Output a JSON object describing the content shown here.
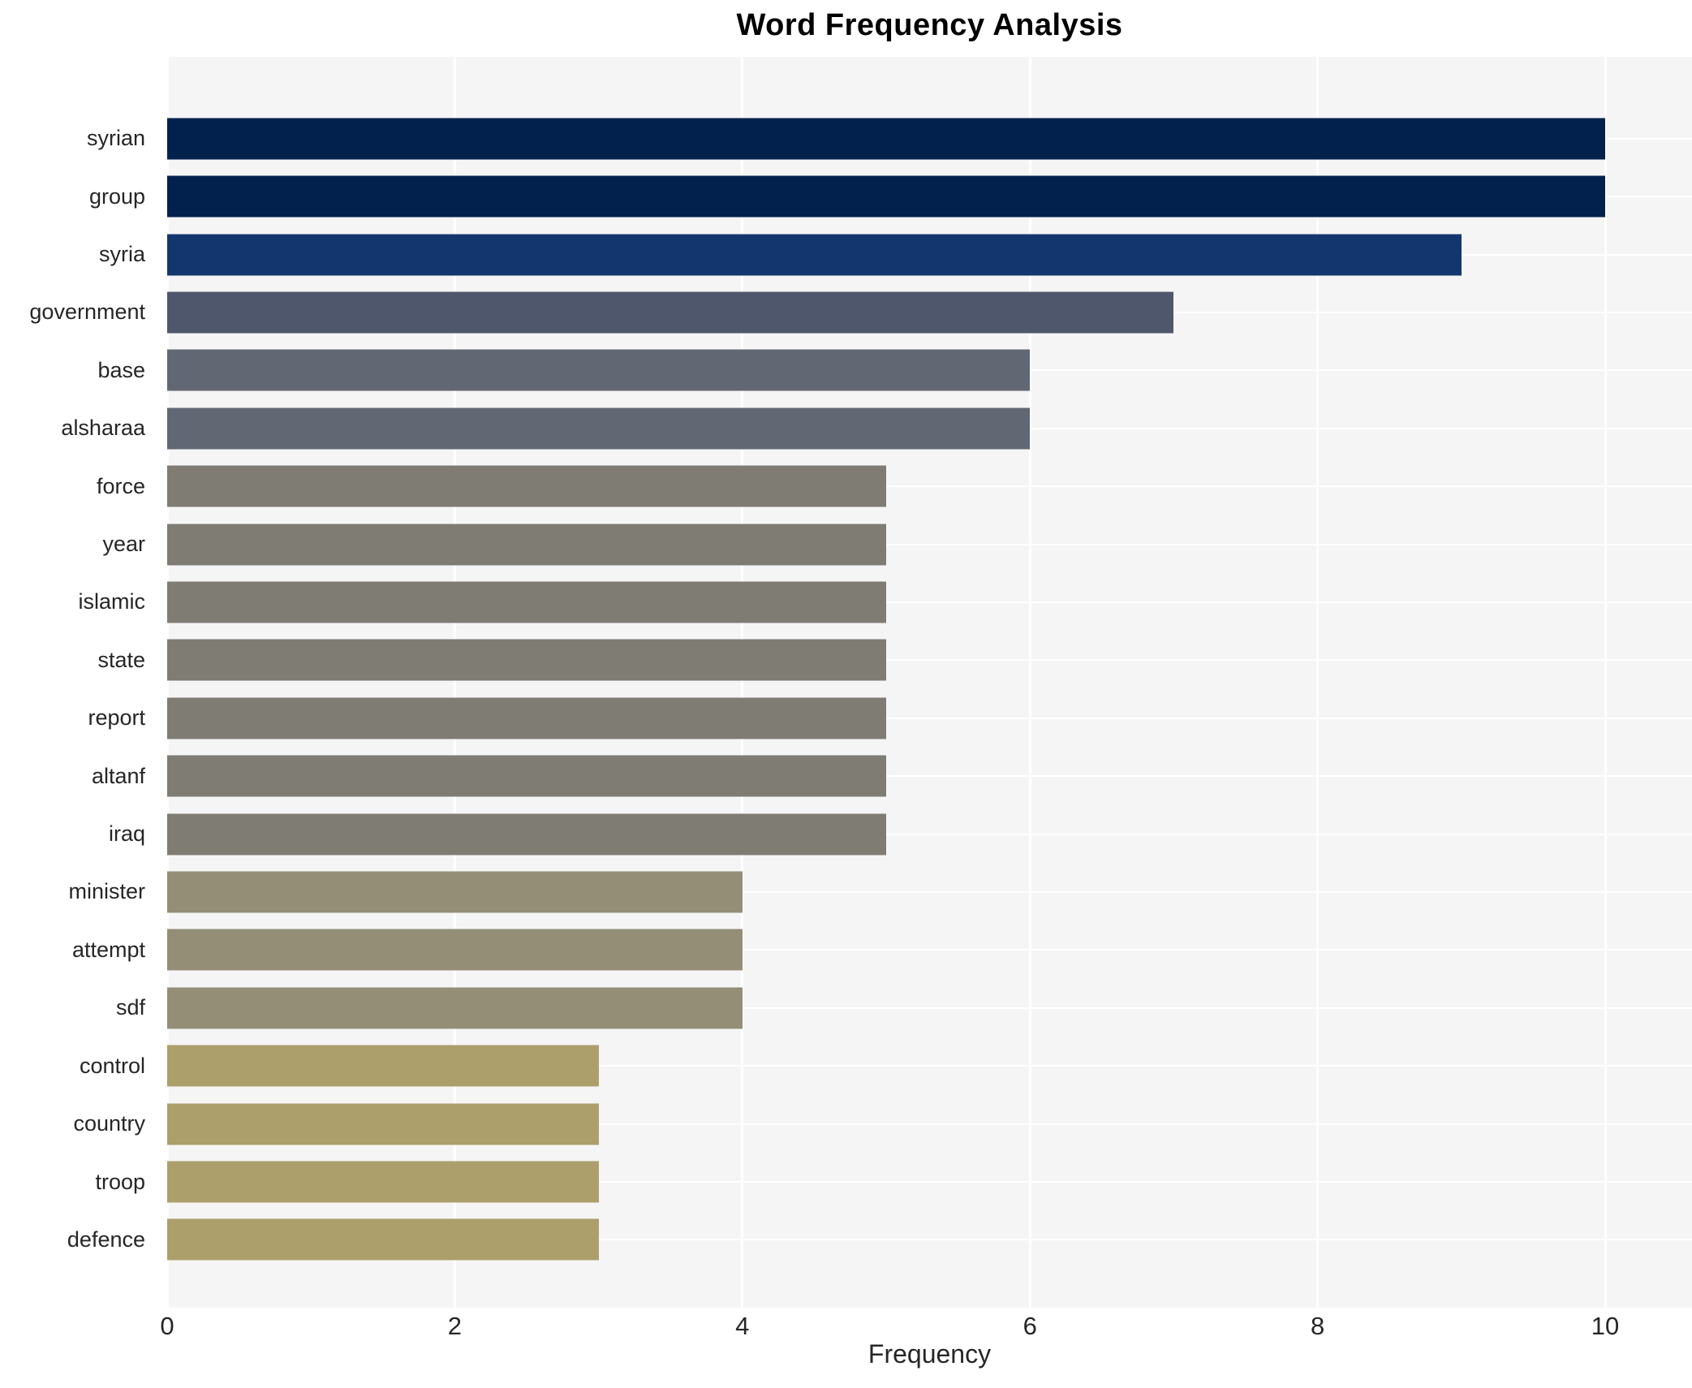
{
  "title": "Word Frequency Analysis",
  "chart_data": {
    "type": "bar",
    "orientation": "horizontal",
    "title": "Word Frequency Analysis",
    "xlabel": "Frequency",
    "ylabel": "",
    "xlim": [
      0,
      10.6
    ],
    "xticks": [
      0,
      2,
      4,
      6,
      8,
      10
    ],
    "grid": true,
    "legend": "none",
    "categories": [
      "syrian",
      "group",
      "syria",
      "government",
      "base",
      "alsharaa",
      "force",
      "year",
      "islamic",
      "state",
      "report",
      "altanf",
      "iraq",
      "minister",
      "attempt",
      "sdf",
      "control",
      "country",
      "troop",
      "defence"
    ],
    "values": [
      10,
      10,
      9,
      7,
      6,
      6,
      5,
      5,
      5,
      5,
      5,
      5,
      5,
      4,
      4,
      4,
      3,
      3,
      3,
      3
    ],
    "bar_colors": [
      "#03214d",
      "#03214d",
      "#14366f",
      "#4e576b",
      "#626873",
      "#626873",
      "#7e7c73",
      "#7e7c73",
      "#7e7c73",
      "#7e7c73",
      "#7e7c73",
      "#7e7c73",
      "#7e7c73",
      "#948e76",
      "#948e76",
      "#948e76",
      "#ac9f6b",
      "#ac9f6b",
      "#ac9f6b",
      "#ac9f6b"
    ],
    "value_color_map": {
      "10": "#03214d",
      "9": "#14366f",
      "7": "#4e576b",
      "6": "#626873",
      "5": "#7e7c73",
      "4": "#948e76",
      "3": "#ac9f6b"
    }
  },
  "style": {
    "figure_bg": "#ffffff",
    "plot_bg": "#f5f5f6",
    "grid_color": "#ffffff",
    "text_color": "#262626",
    "title_color": "#000000"
  }
}
